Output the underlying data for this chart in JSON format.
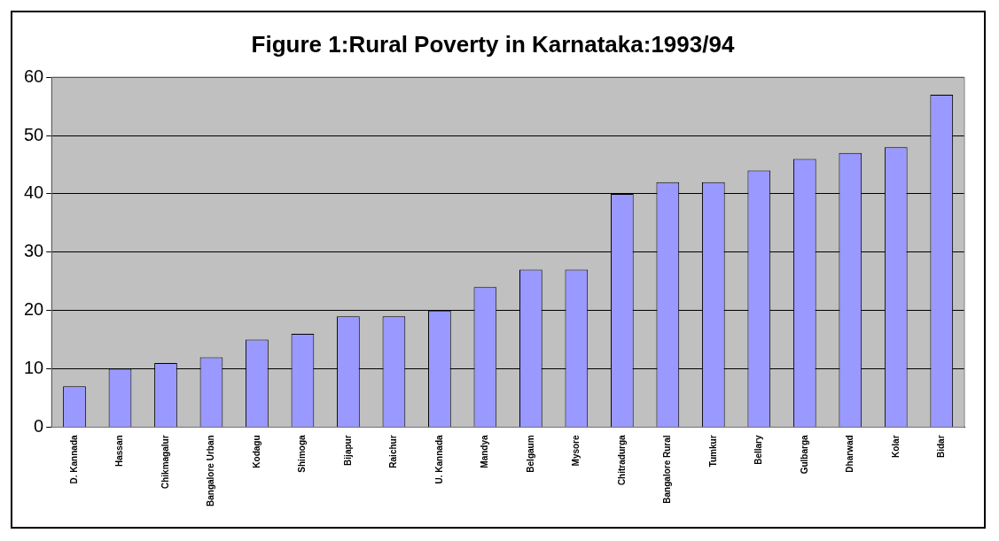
{
  "chart_data": {
    "type": "bar",
    "title": "Figure 1:Rural Poverty in Karnataka:1993/94",
    "categories": [
      "D. Kannada",
      "Hassan",
      "Chikmagalur",
      "Bangalore Urban",
      "Kodagu",
      "Shimoga",
      "Bijapur",
      "Raichur",
      "U. Kannada",
      "Mandya",
      "Belgaum",
      "Mysore",
      "Chitradurga",
      "Bangalore Rural",
      "Tumkur",
      "Bellary",
      "Gulbarga",
      "Dharwad",
      "Kolar",
      "Bidar"
    ],
    "values": [
      7,
      10,
      11,
      12,
      15,
      16,
      19,
      19,
      20,
      24,
      27,
      27,
      40,
      42,
      42,
      44,
      46,
      47,
      48,
      57
    ],
    "color": "#9999ff",
    "ylim": [
      0,
      60
    ],
    "yticks": [
      0,
      10,
      20,
      30,
      40,
      50,
      60
    ],
    "grid": "y",
    "legend": false
  }
}
